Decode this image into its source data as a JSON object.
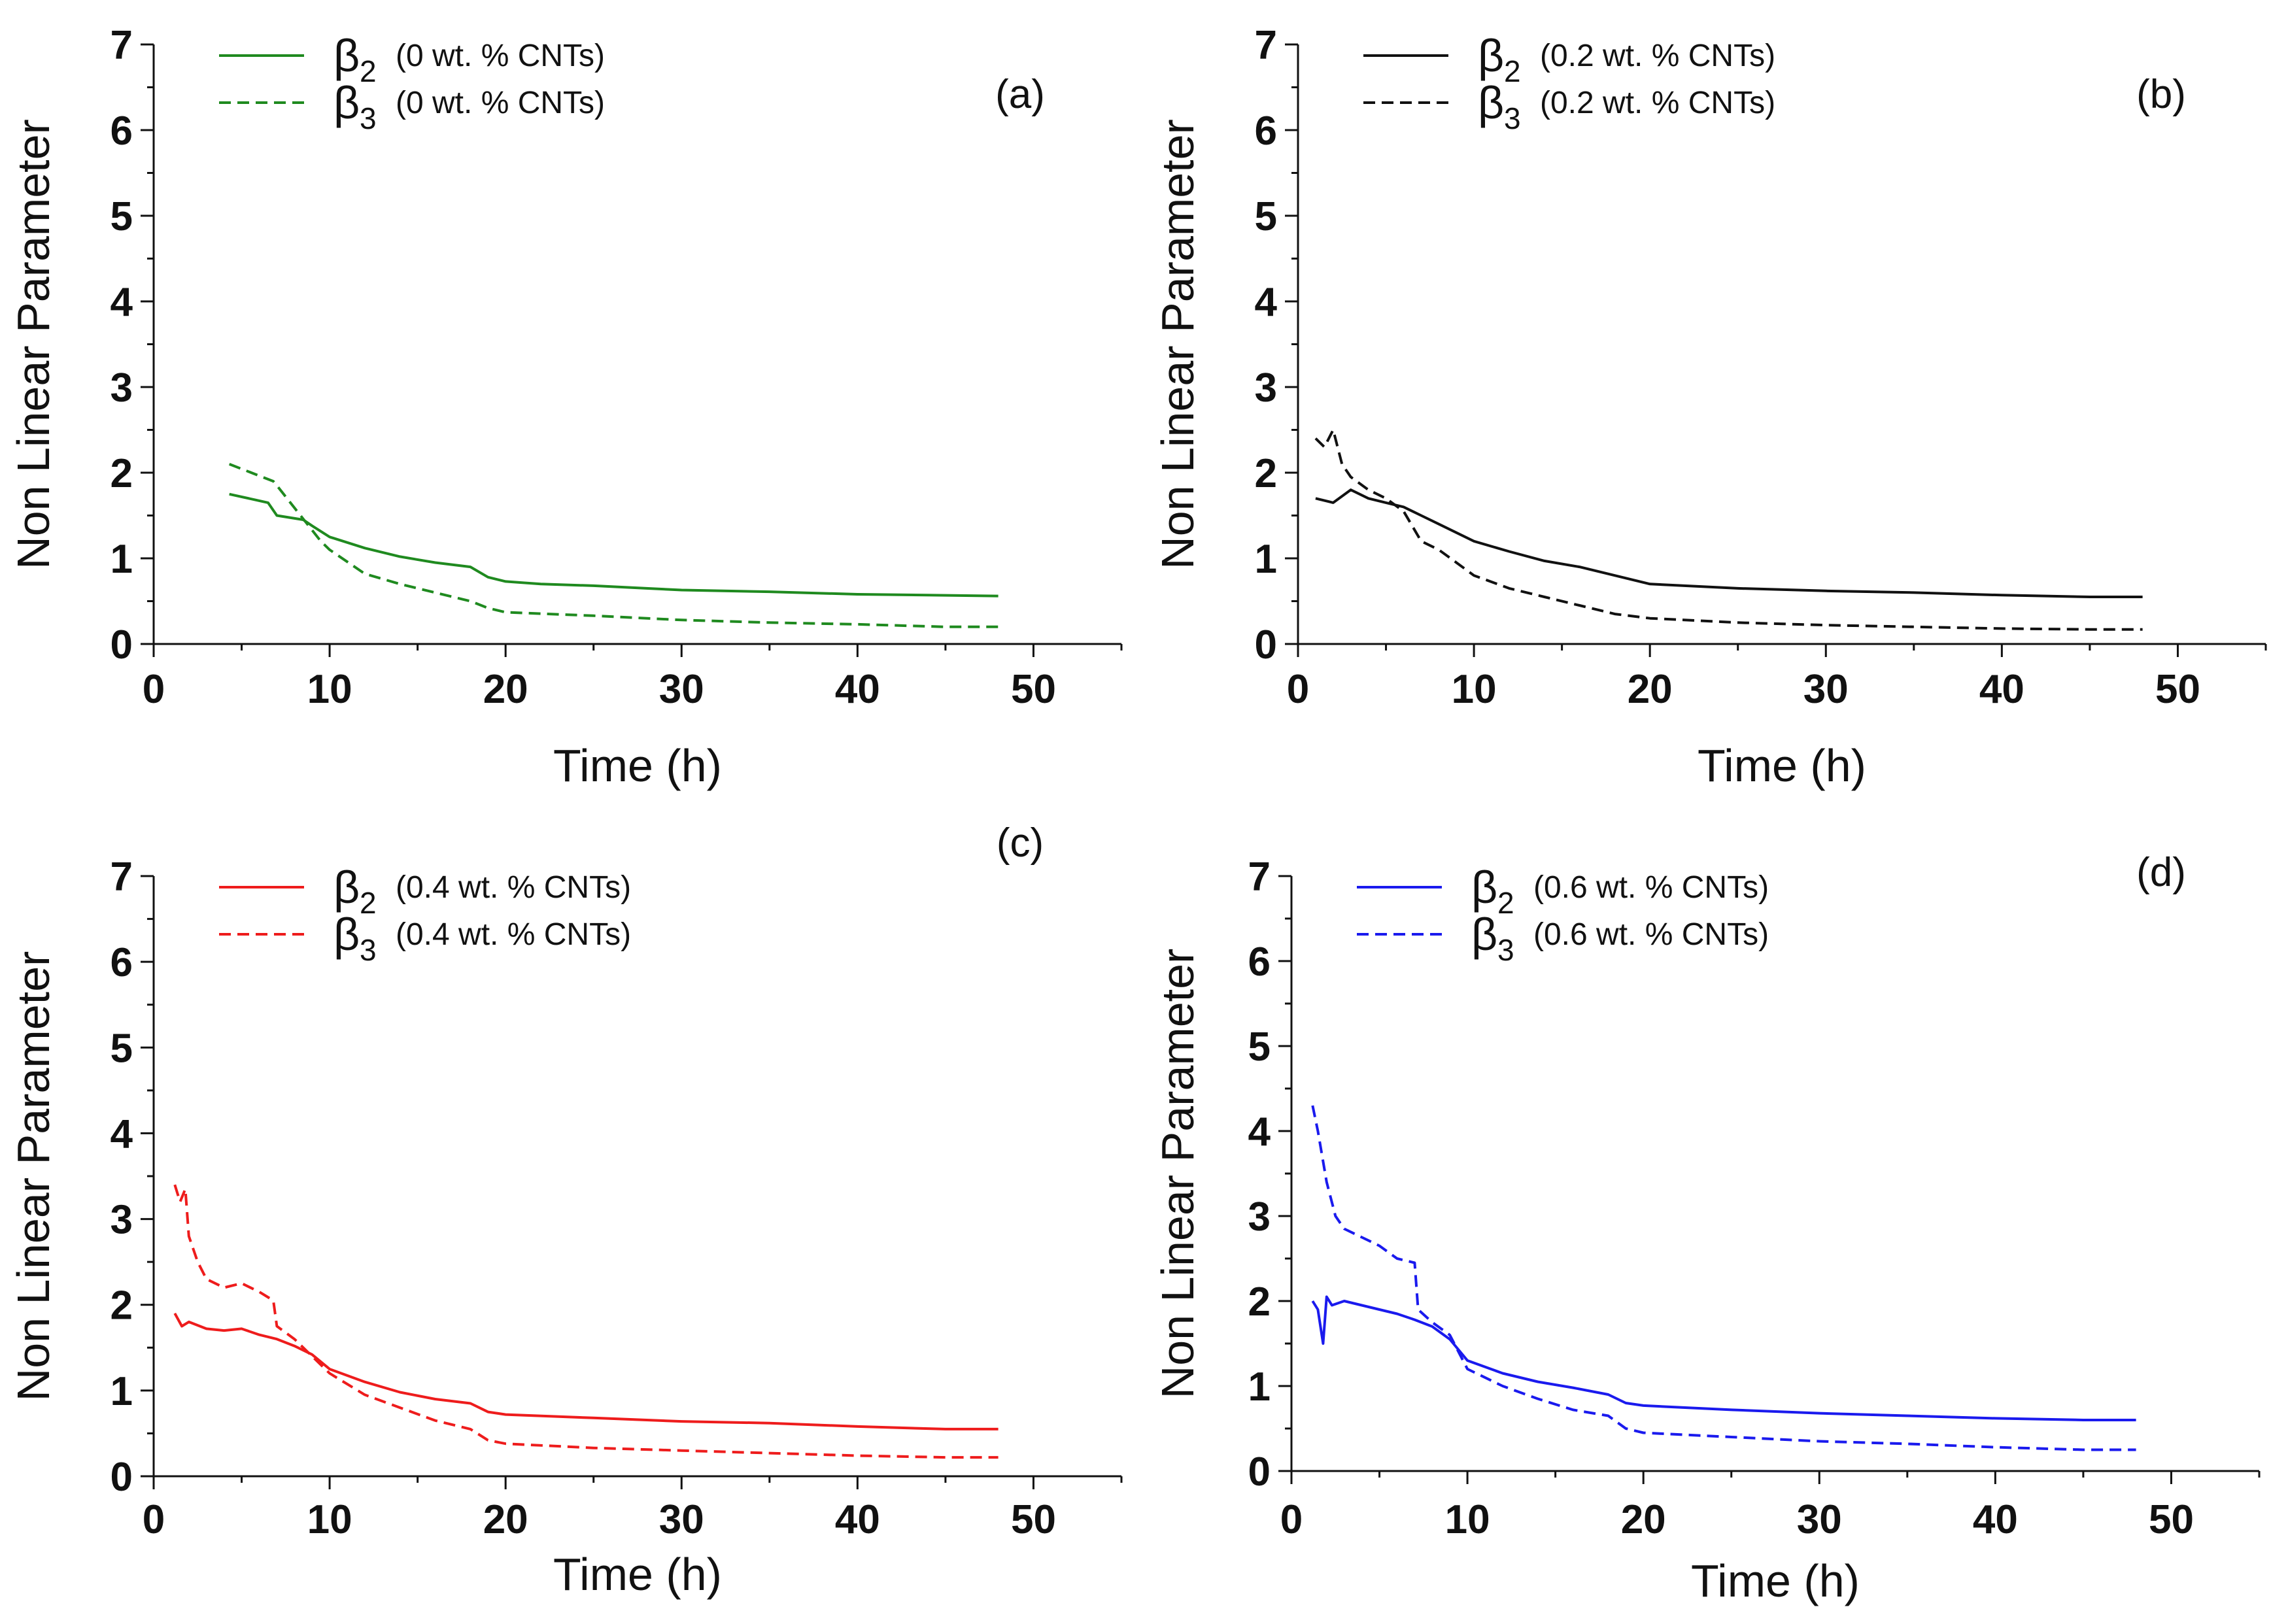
{
  "chart_data": [
    {
      "type": "line",
      "panel_label": "(a)",
      "xlabel": "Time (h)",
      "ylabel": "Non Linear Parameter",
      "xlim": [
        0,
        55
      ],
      "ylim": [
        0,
        7
      ],
      "xticks": [
        "0",
        "10",
        "20",
        "30",
        "40",
        "50"
      ],
      "yticks": [
        "0",
        "1",
        "2",
        "3",
        "4",
        "5",
        "6",
        "7"
      ],
      "color": "#1f8a1f",
      "series": [
        {
          "name": "β2",
          "symbol": "β",
          "subscript": "2",
          "label": "(0 wt. % CNTs)",
          "style": "solid",
          "x": [
            4.3,
            6.5,
            7,
            8.5,
            9,
            10,
            12,
            14,
            16,
            18,
            19,
            20,
            22,
            25,
            28,
            30,
            35,
            40,
            44,
            48
          ],
          "y": [
            1.75,
            1.65,
            1.5,
            1.45,
            1.38,
            1.25,
            1.12,
            1.02,
            0.95,
            0.9,
            0.78,
            0.73,
            0.7,
            0.68,
            0.65,
            0.63,
            0.61,
            0.58,
            0.57,
            0.56
          ]
        },
        {
          "name": "β3",
          "symbol": "β",
          "subscript": "3",
          "label": "(0 wt. % CNTs)",
          "style": "dashed",
          "x": [
            4.3,
            6.8,
            7,
            9.5,
            10,
            12,
            14,
            16,
            18,
            19,
            20,
            25,
            30,
            35,
            40,
            45,
            48
          ],
          "y": [
            2.1,
            1.9,
            1.85,
            1.2,
            1.1,
            0.82,
            0.7,
            0.6,
            0.5,
            0.42,
            0.37,
            0.33,
            0.28,
            0.25,
            0.23,
            0.2,
            0.2
          ]
        }
      ]
    },
    {
      "type": "line",
      "panel_label": "(b)",
      "xlabel": "Time (h)",
      "ylabel": "Non Linear Parameter",
      "xlim": [
        0,
        55
      ],
      "ylim": [
        0,
        7
      ],
      "xticks": [
        "0",
        "10",
        "20",
        "30",
        "40",
        "50"
      ],
      "yticks": [
        "0",
        "1",
        "2",
        "3",
        "4",
        "5",
        "6",
        "7"
      ],
      "color": "#111111",
      "series": [
        {
          "name": "β2",
          "symbol": "β",
          "subscript": "2",
          "label": "(0.2 wt. % CNTs)",
          "style": "solid",
          "x": [
            1,
            2,
            3,
            4,
            5,
            6,
            7,
            8,
            9,
            10,
            12,
            14,
            16,
            18,
            20,
            25,
            30,
            35,
            40,
            45,
            48
          ],
          "y": [
            1.7,
            1.65,
            1.8,
            1.7,
            1.65,
            1.6,
            1.5,
            1.4,
            1.3,
            1.2,
            1.08,
            0.97,
            0.9,
            0.8,
            0.7,
            0.65,
            0.62,
            0.6,
            0.57,
            0.55,
            0.55
          ]
        },
        {
          "name": "β3",
          "symbol": "β",
          "subscript": "3",
          "label": "(0.2 wt. % CNTs)",
          "style": "dashed",
          "x": [
            1,
            1.5,
            2,
            2.5,
            3,
            4,
            5,
            6,
            7,
            8,
            9,
            10,
            12,
            14,
            16,
            18,
            20,
            25,
            30,
            35,
            40,
            45,
            48
          ],
          "y": [
            2.4,
            2.3,
            2.5,
            2.1,
            1.95,
            1.8,
            1.7,
            1.55,
            1.2,
            1.1,
            0.95,
            0.8,
            0.65,
            0.55,
            0.45,
            0.35,
            0.3,
            0.25,
            0.22,
            0.2,
            0.18,
            0.17,
            0.17
          ]
        }
      ]
    },
    {
      "type": "line",
      "panel_label": "(c)",
      "xlabel": "Time (h)",
      "ylabel": "Non Linear Parameter",
      "xlim": [
        0,
        55
      ],
      "ylim": [
        0,
        7
      ],
      "xticks": [
        "0",
        "10",
        "20",
        "30",
        "40",
        "50"
      ],
      "yticks": [
        "0",
        "1",
        "2",
        "3",
        "4",
        "5",
        "6",
        "7"
      ],
      "color": "#ee1c1c",
      "series": [
        {
          "name": "β2",
          "symbol": "β",
          "subscript": "2",
          "label": "(0.4 wt. % CNTs)",
          "style": "solid",
          "x": [
            1.2,
            1.6,
            2,
            3,
            4,
            5,
            6,
            7,
            8,
            9,
            10,
            12,
            14,
            16,
            18,
            19,
            20,
            25,
            30,
            35,
            40,
            45,
            48
          ],
          "y": [
            1.9,
            1.75,
            1.8,
            1.72,
            1.7,
            1.72,
            1.65,
            1.6,
            1.52,
            1.42,
            1.25,
            1.1,
            0.98,
            0.9,
            0.85,
            0.75,
            0.72,
            0.68,
            0.64,
            0.62,
            0.58,
            0.55,
            0.55
          ]
        },
        {
          "name": "β3",
          "symbol": "β",
          "subscript": "3",
          "label": "(0.4 wt. % CNTs)",
          "style": "dashed",
          "x": [
            1.2,
            1.5,
            1.8,
            2,
            2.5,
            3,
            4,
            5,
            6,
            6.8,
            7,
            8,
            9,
            10,
            12,
            14,
            16,
            18,
            19,
            20,
            25,
            30,
            35,
            40,
            45,
            48
          ],
          "y": [
            3.4,
            3.2,
            3.35,
            2.8,
            2.5,
            2.3,
            2.2,
            2.25,
            2.15,
            2.05,
            1.75,
            1.6,
            1.4,
            1.2,
            0.95,
            0.8,
            0.65,
            0.55,
            0.42,
            0.38,
            0.33,
            0.3,
            0.27,
            0.24,
            0.22,
            0.22
          ]
        }
      ]
    },
    {
      "type": "line",
      "panel_label": "(d)",
      "xlabel": "Time (h)",
      "ylabel": "Non Linear Parameter",
      "xlim": [
        0,
        55
      ],
      "ylim": [
        0,
        7
      ],
      "xticks": [
        "0",
        "10",
        "20",
        "30",
        "40",
        "50"
      ],
      "yticks": [
        "0",
        "1",
        "2",
        "3",
        "4",
        "5",
        "6",
        "7"
      ],
      "color": "#1a1aee",
      "series": [
        {
          "name": "β2",
          "symbol": "β",
          "subscript": "2",
          "label": "(0.6 wt. % CNTs)",
          "style": "solid",
          "x": [
            1.2,
            1.5,
            1.8,
            2,
            2.3,
            3,
            4,
            5,
            6,
            7,
            8,
            9,
            10,
            12,
            14,
            16,
            18,
            19,
            20,
            25,
            30,
            35,
            40,
            45,
            48
          ],
          "y": [
            2.0,
            1.9,
            1.5,
            2.05,
            1.95,
            2.0,
            1.95,
            1.9,
            1.85,
            1.78,
            1.7,
            1.55,
            1.3,
            1.15,
            1.05,
            0.98,
            0.9,
            0.8,
            0.77,
            0.72,
            0.68,
            0.65,
            0.62,
            0.6,
            0.6
          ]
        },
        {
          "name": "β3",
          "symbol": "β",
          "subscript": "3",
          "label": "(0.6 wt. % CNTs)",
          "style": "dashed",
          "x": [
            1.2,
            1.5,
            2,
            2.5,
            3,
            4,
            5,
            6,
            7,
            7.2,
            8,
            9,
            10,
            12,
            14,
            16,
            18,
            19,
            20,
            25,
            30,
            35,
            40,
            45,
            48
          ],
          "y": [
            4.3,
            4.0,
            3.4,
            3.0,
            2.85,
            2.75,
            2.65,
            2.5,
            2.45,
            1.9,
            1.75,
            1.6,
            1.2,
            1.0,
            0.85,
            0.72,
            0.65,
            0.5,
            0.45,
            0.4,
            0.35,
            0.32,
            0.28,
            0.25,
            0.25
          ]
        }
      ]
    }
  ]
}
